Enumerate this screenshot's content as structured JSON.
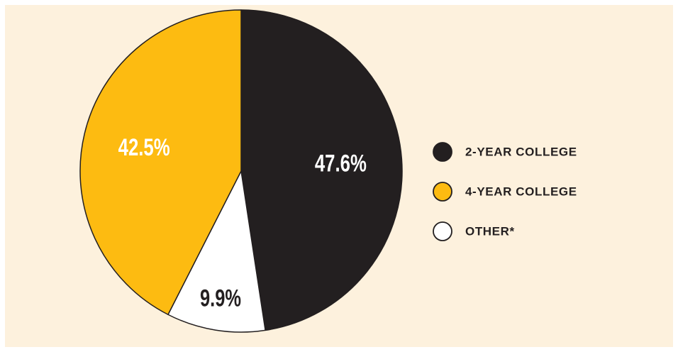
{
  "colors": {
    "background": "#fdf1dd",
    "two_year": "#231f20",
    "four_year": "#fdbb11",
    "other": "#ffffff",
    "outline": "#231f20"
  },
  "chart_data": {
    "type": "pie",
    "title": "",
    "slices": [
      {
        "label": "2-YEAR COLLEGE",
        "value": 47.6,
        "value_label": "47.6%",
        "color": "#231f20",
        "label_color": "#ffffff"
      },
      {
        "label": "OTHER*",
        "value": 9.9,
        "value_label": "9.9%",
        "color": "#ffffff",
        "label_color": "#231f20"
      },
      {
        "label": "4-YEAR COLLEGE",
        "value": 42.5,
        "value_label": "42.5%",
        "color": "#fdbb11",
        "label_color": "#ffffff"
      }
    ],
    "legend": {
      "placement": "right",
      "entries": [
        {
          "label": "2-YEAR COLLEGE",
          "color": "#231f20"
        },
        {
          "label": "4-YEAR COLLEGE",
          "color": "#fdbb11"
        },
        {
          "label": "OTHER*",
          "color": "#ffffff"
        }
      ]
    }
  }
}
